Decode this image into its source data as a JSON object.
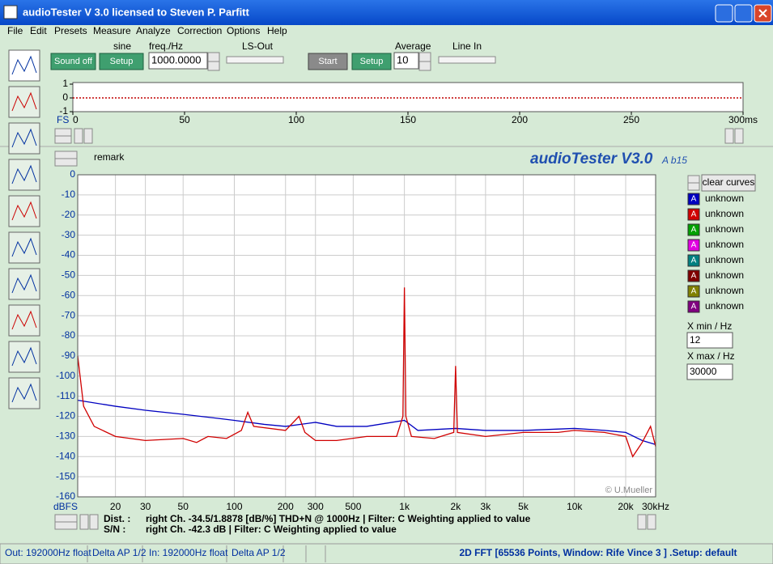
{
  "window": {
    "title": "audioTester  V 3.0   licensed to Steven P. Parfitt"
  },
  "menu": [
    "File",
    "Edit",
    "Presets",
    "Measure",
    "Analyze",
    "Correction",
    "Options",
    "Help"
  ],
  "toolbar": {
    "sine": "sine",
    "freq_label": "freq./Hz",
    "ls_out": "LS-Out",
    "average_label": "Average",
    "line_in": "Line In",
    "sound_off": "Sound off",
    "setup1": "Setup",
    "freq_value": "1000.0000",
    "start": "Start",
    "setup2": "Setup",
    "average_value": "10"
  },
  "chart_data": [
    {
      "type": "line",
      "ylabel": "FS",
      "xlim": [
        0,
        300
      ],
      "ylim": [
        -1,
        1
      ],
      "yticks": [
        1,
        0,
        -1
      ],
      "xticks": [
        0,
        50,
        100,
        150,
        200,
        250,
        {
          "value": 300,
          "label": "300ms"
        }
      ],
      "series": [
        {
          "color": "#c00000",
          "x": [
            0,
            300
          ],
          "values": [
            0,
            0
          ]
        }
      ]
    },
    {
      "type": "line",
      "log_x": true,
      "grid": true,
      "ylabel": "dBFS",
      "remark": "remark",
      "brand": "audioTester V3.0",
      "brand_sub": "A b15",
      "copyright": "© U.Mueller",
      "xlim": [
        12,
        30000
      ],
      "ylim": [
        -160,
        0
      ],
      "yticks": [
        0,
        -10,
        -20,
        -30,
        -40,
        -50,
        -60,
        -70,
        -80,
        -90,
        -100,
        -110,
        -120,
        -130,
        -140,
        -150,
        -160
      ],
      "xticks": [
        20,
        30,
        50,
        100,
        200,
        300,
        500,
        {
          "value": 1000,
          "label": "1k"
        },
        {
          "value": 2000,
          "label": "2k"
        },
        {
          "value": 3000,
          "label": "3k"
        },
        {
          "value": 5000,
          "label": "5k"
        },
        {
          "value": 10000,
          "label": "10k"
        },
        {
          "value": 20000,
          "label": "20k"
        },
        {
          "value": 30000,
          "label": "30kHz"
        }
      ],
      "series": [
        {
          "name": "unknown",
          "color": "#0000c0",
          "x": [
            12,
            20,
            30,
            50,
            80,
            100,
            150,
            200,
            300,
            400,
            600,
            1000,
            1200,
            2000,
            3000,
            5000,
            10000,
            15000,
            20000,
            25000,
            30000
          ],
          "values": [
            -112,
            -115,
            -117,
            -119,
            -121,
            -122,
            -124,
            -125,
            -123,
            -125,
            -125,
            -122,
            -127,
            -126,
            -127,
            -127,
            -126,
            -127,
            -128,
            -132,
            -134
          ]
        },
        {
          "name": "unknown",
          "color": "#d00000",
          "x": [
            12,
            13,
            15,
            20,
            30,
            50,
            60,
            70,
            90,
            110,
            120,
            130,
            200,
            240,
            260,
            300,
            400,
            600,
            900,
            980,
            1000,
            1020,
            1100,
            1500,
            1950,
            2000,
            2050,
            3000,
            5000,
            8000,
            10000,
            15000,
            20000,
            22000,
            25000,
            28000,
            30000
          ],
          "values": [
            -90,
            -115,
            -125,
            -130,
            -132,
            -131,
            -133,
            -130,
            -131,
            -127,
            -118,
            -125,
            -127,
            -120,
            -128,
            -132,
            -132,
            -130,
            -130,
            -120,
            -56,
            -120,
            -130,
            -131,
            -128,
            -95,
            -128,
            -130,
            -128,
            -128,
            -127,
            -128,
            -130,
            -140,
            -133,
            -125,
            -135
          ]
        },
        {
          "name": "unknown",
          "color": "#00a000",
          "x": [],
          "values": []
        },
        {
          "name": "unknown",
          "color": "#e000e0",
          "x": [],
          "values": []
        },
        {
          "name": "unknown",
          "color": "#008080",
          "x": [],
          "values": []
        },
        {
          "name": "unknown",
          "color": "#800000",
          "x": [],
          "values": []
        },
        {
          "name": "unknown",
          "color": "#808000",
          "x": [],
          "values": []
        },
        {
          "name": "unknown",
          "color": "#800080",
          "x": [],
          "values": []
        }
      ]
    }
  ],
  "panel": {
    "clear_curves": "clear curves",
    "legend_icon": "A",
    "xmin_label": "X min / Hz",
    "xmin_value": "12",
    "xmax_label": "X max / Hz",
    "xmax_value": "30000"
  },
  "results": {
    "dist_label": "Dist. :",
    "dist_text": "right Ch. -34.5/1.8878 [dB/%] THD+N @ 1000Hz  | Filter: C Weighting applied to value",
    "sn_label": "S/N :",
    "sn_text": "right Ch. -42.3 dB   | Filter: C Weighting applied to value"
  },
  "status": [
    "Out: 192000Hz float",
    "Delta AP 1/2",
    "In: 192000Hz float",
    "Delta AP 1/2",
    "2D FFT [65536 Points, Window: Rife Vince 3 ] .Setup:  default"
  ]
}
